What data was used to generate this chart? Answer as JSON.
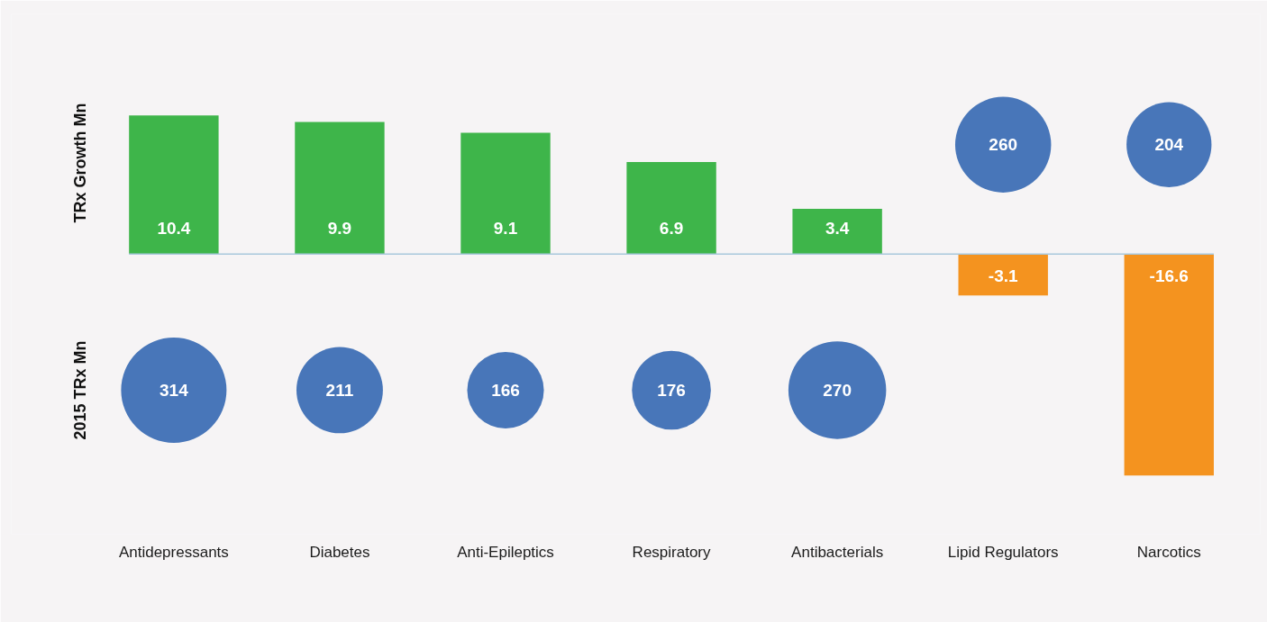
{
  "chart_data": {
    "type": "bar",
    "ylabel": "TRx Growth Mn",
    "y2label": "2015 TRx Mn",
    "categories": [
      "Antidepressants",
      "Diabetes",
      "Anti-Epileptics",
      "Respiratory",
      "Antibacterials",
      "Lipid Regulators",
      "Narcotics"
    ],
    "series": [
      {
        "colors": [
          "#3eb54a",
          "#3eb54a",
          "#3eb54a",
          "#3eb54a",
          "#3eb54a",
          "#f4931f",
          "#f4931f"
        ],
        "values": [
          10.4,
          9.9,
          9.1,
          6.9,
          3.4,
          -3.1,
          -16.6
        ]
      },
      {
        "type": "bubble",
        "color": "#4876b9",
        "values": [
          -10.2,
          -10.2,
          -10.2,
          -10.2,
          -10.2,
          8.2,
          8.2
        ],
        "sizes": [
          314,
          211,
          166,
          176,
          270,
          260,
          204
        ],
        "value_labels": [
          "314",
          "211",
          "166",
          "176",
          "270",
          "260",
          "204"
        ]
      }
    ],
    "ref_lines": [
      {
        "axis": "y",
        "value": 0,
        "color": "#a8c8dc"
      }
    ],
    "ylim": [
      -21,
      18
    ],
    "tick_labels": "x",
    "data_labels": true
  }
}
